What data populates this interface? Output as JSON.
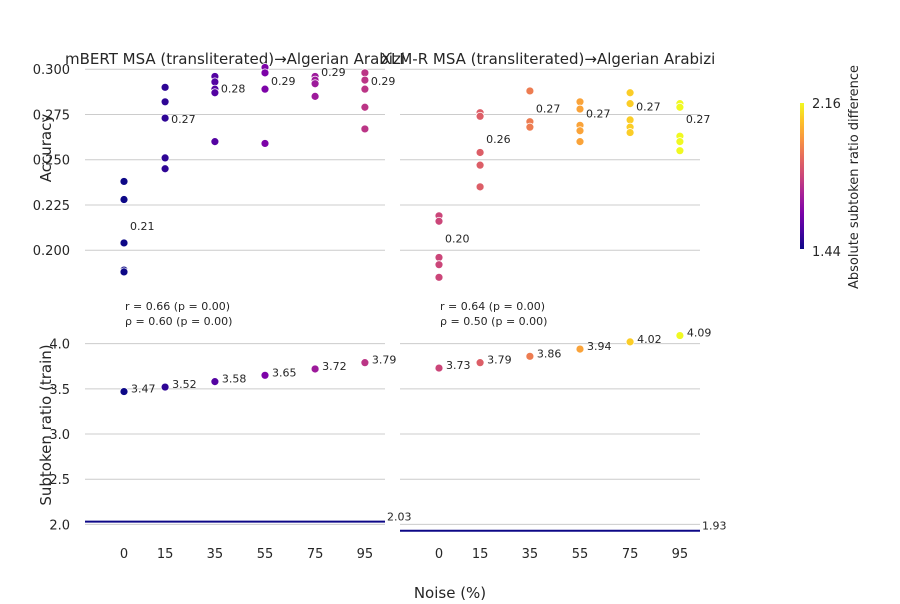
{
  "figure": {
    "xlabel": "Noise (%)",
    "colorbar": {
      "label": "Absolute subtoken ratio difference",
      "min": 1.44,
      "max": 2.16,
      "cmap": "plasma",
      "min_label": "1.44",
      "max_label": "2.16"
    }
  },
  "chart_data": [
    {
      "type": "scatter",
      "panel": "mbert-accuracy",
      "title": "mBERT MSA (transliterated)→Algerian Arabizi",
      "ylabel": "Accuracy",
      "xticks": [
        "0",
        "15",
        "35",
        "55",
        "75",
        "95"
      ],
      "ylim": [
        0.178,
        0.304
      ],
      "yticks": [
        "0.200",
        "0.225",
        "0.250",
        "0.275",
        "0.300"
      ],
      "grid": true,
      "points": [
        {
          "x": 0,
          "y": 0.238,
          "c": 1.44
        },
        {
          "x": 0,
          "y": 0.228,
          "c": 1.44
        },
        {
          "x": 0,
          "y": 0.204,
          "c": 1.44
        },
        {
          "x": 0,
          "y": 0.189,
          "c": 1.44
        },
        {
          "x": 0,
          "y": 0.188,
          "c": 1.44
        },
        {
          "x": 15,
          "y": 0.29,
          "c": 1.49
        },
        {
          "x": 15,
          "y": 0.282,
          "c": 1.49
        },
        {
          "x": 15,
          "y": 0.273,
          "c": 1.49
        },
        {
          "x": 15,
          "y": 0.251,
          "c": 1.49
        },
        {
          "x": 15,
          "y": 0.245,
          "c": 1.49
        },
        {
          "x": 35,
          "y": 0.296,
          "c": 1.55
        },
        {
          "x": 35,
          "y": 0.293,
          "c": 1.55
        },
        {
          "x": 35,
          "y": 0.289,
          "c": 1.55
        },
        {
          "x": 35,
          "y": 0.287,
          "c": 1.55
        },
        {
          "x": 35,
          "y": 0.26,
          "c": 1.55
        },
        {
          "x": 55,
          "y": 0.301,
          "c": 1.62
        },
        {
          "x": 55,
          "y": 0.298,
          "c": 1.62
        },
        {
          "x": 55,
          "y": 0.289,
          "c": 1.62
        },
        {
          "x": 55,
          "y": 0.259,
          "c": 1.62
        },
        {
          "x": 75,
          "y": 0.296,
          "c": 1.69
        },
        {
          "x": 75,
          "y": 0.294,
          "c": 1.69
        },
        {
          "x": 75,
          "y": 0.292,
          "c": 1.69
        },
        {
          "x": 75,
          "y": 0.285,
          "c": 1.69
        },
        {
          "x": 95,
          "y": 0.298,
          "c": 1.76
        },
        {
          "x": 95,
          "y": 0.294,
          "c": 1.76
        },
        {
          "x": 95,
          "y": 0.289,
          "c": 1.76
        },
        {
          "x": 95,
          "y": 0.279,
          "c": 1.76
        },
        {
          "x": 95,
          "y": 0.267,
          "c": 1.76
        }
      ],
      "mean_labels": [
        {
          "x": 0,
          "y": 0.209,
          "text": "0.21"
        },
        {
          "x": 15,
          "y": 0.268,
          "text": "0.27"
        },
        {
          "x": 35,
          "y": 0.285,
          "text": "0.28"
        },
        {
          "x": 55,
          "y": 0.289,
          "text": "0.29"
        },
        {
          "x": 75,
          "y": 0.294,
          "text": "0.29"
        },
        {
          "x": 95,
          "y": 0.289,
          "text": "0.29"
        }
      ],
      "correlation": [
        "r = 0.66 (p = 0.00)",
        "ρ = 0.60 (p = 0.00)"
      ]
    },
    {
      "type": "scatter",
      "panel": "xlmr-accuracy",
      "title": "XLM-R MSA (transliterated)→Algerian Arabizi",
      "xticks": [
        "0",
        "15",
        "35",
        "55",
        "75",
        "95"
      ],
      "ylim": [
        0.178,
        0.304
      ],
      "grid": true,
      "points": [
        {
          "x": 0,
          "y": 0.219,
          "c": 1.8
        },
        {
          "x": 0,
          "y": 0.216,
          "c": 1.8
        },
        {
          "x": 0,
          "y": 0.196,
          "c": 1.8
        },
        {
          "x": 0,
          "y": 0.192,
          "c": 1.8
        },
        {
          "x": 0,
          "y": 0.185,
          "c": 1.8
        },
        {
          "x": 15,
          "y": 0.276,
          "c": 1.86
        },
        {
          "x": 15,
          "y": 0.274,
          "c": 1.86
        },
        {
          "x": 15,
          "y": 0.254,
          "c": 1.86
        },
        {
          "x": 15,
          "y": 0.247,
          "c": 1.86
        },
        {
          "x": 15,
          "y": 0.235,
          "c": 1.86
        },
        {
          "x": 35,
          "y": 0.288,
          "c": 1.93
        },
        {
          "x": 35,
          "y": 0.271,
          "c": 1.93
        },
        {
          "x": 35,
          "y": 0.268,
          "c": 1.93
        },
        {
          "x": 55,
          "y": 0.282,
          "c": 2.01
        },
        {
          "x": 55,
          "y": 0.278,
          "c": 2.01
        },
        {
          "x": 55,
          "y": 0.269,
          "c": 2.01
        },
        {
          "x": 55,
          "y": 0.266,
          "c": 2.01
        },
        {
          "x": 55,
          "y": 0.26,
          "c": 2.01
        },
        {
          "x": 75,
          "y": 0.287,
          "c": 2.09
        },
        {
          "x": 75,
          "y": 0.281,
          "c": 2.09
        },
        {
          "x": 75,
          "y": 0.272,
          "c": 2.09
        },
        {
          "x": 75,
          "y": 0.268,
          "c": 2.09
        },
        {
          "x": 75,
          "y": 0.265,
          "c": 2.09
        },
        {
          "x": 95,
          "y": 0.281,
          "c": 2.16
        },
        {
          "x": 95,
          "y": 0.279,
          "c": 2.16
        },
        {
          "x": 95,
          "y": 0.263,
          "c": 2.16
        },
        {
          "x": 95,
          "y": 0.26,
          "c": 2.16
        },
        {
          "x": 95,
          "y": 0.255,
          "c": 2.16
        }
      ],
      "mean_labels": [
        {
          "x": 0,
          "y": 0.202,
          "text": "0.20"
        },
        {
          "x": 15,
          "y": 0.257,
          "text": "0.26"
        },
        {
          "x": 35,
          "y": 0.274,
          "text": "0.27"
        },
        {
          "x": 55,
          "y": 0.271,
          "text": "0.27"
        },
        {
          "x": 75,
          "y": 0.275,
          "text": "0.27"
        },
        {
          "x": 95,
          "y": 0.268,
          "text": "0.27"
        }
      ],
      "correlation": [
        "r = 0.64 (p = 0.00)",
        "ρ = 0.50 (p = 0.00)"
      ]
    },
    {
      "type": "scatter",
      "panel": "mbert-subtoken",
      "ylabel": "Subtoken ratio (train)",
      "xticks": [
        "0",
        "15",
        "35",
        "55",
        "75",
        "95"
      ],
      "ylim": [
        1.96,
        4.24
      ],
      "yticks": [
        "2.0",
        "2.5",
        "3.0",
        "3.5",
        "4.0"
      ],
      "grid": true,
      "points": [
        {
          "x": 0,
          "y": 3.47,
          "c": 1.44,
          "text": "3.47"
        },
        {
          "x": 15,
          "y": 3.52,
          "c": 1.49,
          "text": "3.52"
        },
        {
          "x": 35,
          "y": 3.58,
          "c": 1.55,
          "text": "3.58"
        },
        {
          "x": 55,
          "y": 3.65,
          "c": 1.62,
          "text": "3.65"
        },
        {
          "x": 75,
          "y": 3.72,
          "c": 1.69,
          "text": "3.72"
        },
        {
          "x": 95,
          "y": 3.79,
          "c": 1.76,
          "text": "3.79"
        }
      ],
      "reference_line": {
        "y": 2.03,
        "text": "2.03"
      }
    },
    {
      "type": "scatter",
      "panel": "xlmr-subtoken",
      "xticks": [
        "0",
        "15",
        "35",
        "55",
        "75",
        "95"
      ],
      "ylim": [
        1.96,
        4.24
      ],
      "grid": true,
      "points": [
        {
          "x": 0,
          "y": 3.73,
          "c": 1.8,
          "text": "3.73"
        },
        {
          "x": 15,
          "y": 3.79,
          "c": 1.86,
          "text": "3.79"
        },
        {
          "x": 35,
          "y": 3.86,
          "c": 1.93,
          "text": "3.86"
        },
        {
          "x": 55,
          "y": 3.94,
          "c": 2.01,
          "text": "3.94"
        },
        {
          "x": 75,
          "y": 4.02,
          "c": 2.09,
          "text": "4.02"
        },
        {
          "x": 95,
          "y": 4.09,
          "c": 2.16,
          "text": "4.09"
        }
      ],
      "reference_line": {
        "y": 1.93,
        "text": "1.93"
      }
    }
  ]
}
